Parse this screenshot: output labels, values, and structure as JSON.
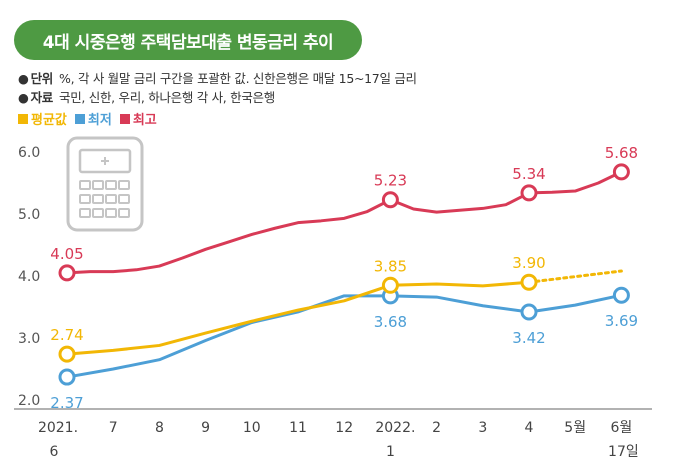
{
  "title": "4대 시중은행 주택담보대출 변동금리 추이",
  "notes": [
    {
      "key": "단위",
      "text": "%, 각 사 월말 금리 구간을 포괄한 값. 신한은행은 매달 15~17일 금리"
    },
    {
      "key": "자료",
      "text": "국민, 신한, 우리, 하나은행 각 사, 한국은행"
    }
  ],
  "colors": {
    "avg": "#f2b705",
    "min": "#4d9fd6",
    "max": "#d83a56",
    "title_bg": "#4e9a43"
  },
  "chart_data": {
    "type": "line",
    "title": "4대 시중은행 주택담보대출 변동금리 추이",
    "ylabel": "%",
    "ylim": [
      2.0,
      6.0
    ],
    "yticks": [
      "2.0",
      "3.0",
      "4.0",
      "5.0",
      "6.0"
    ],
    "categories": [
      {
        "top": "2021.",
        "bottom": "6"
      },
      {
        "top": "7",
        "bottom": ""
      },
      {
        "top": "8",
        "bottom": ""
      },
      {
        "top": "9",
        "bottom": ""
      },
      {
        "top": "10",
        "bottom": ""
      },
      {
        "top": "11",
        "bottom": ""
      },
      {
        "top": "12",
        "bottom": ""
      },
      {
        "top": "2022.",
        "bottom": "1"
      },
      {
        "top": "2",
        "bottom": ""
      },
      {
        "top": "3",
        "bottom": ""
      },
      {
        "top": "4",
        "bottom": ""
      },
      {
        "top": "5월",
        "bottom": ""
      },
      {
        "top": "6월",
        "bottom": "17일"
      }
    ],
    "series": [
      {
        "name": "최고",
        "key": "max",
        "x": [
          0,
          0.5,
          1,
          1.5,
          2,
          2.5,
          3,
          3.5,
          4,
          4.5,
          5,
          5.5,
          6,
          6.5,
          7,
          7.5,
          8,
          8.5,
          9,
          9.5,
          10,
          10.5,
          11,
          11.5,
          12
        ],
        "values": [
          4.05,
          4.07,
          4.07,
          4.1,
          4.16,
          4.29,
          4.43,
          4.55,
          4.67,
          4.77,
          4.86,
          4.89,
          4.93,
          5.04,
          5.23,
          5.08,
          5.03,
          5.06,
          5.09,
          5.15,
          5.34,
          5.35,
          5.37,
          5.5,
          5.68
        ],
        "labels": [
          {
            "x": 0,
            "value": 4.05,
            "text": "4.05",
            "pos": "above"
          },
          {
            "x": 7,
            "value": 5.23,
            "text": "5.23",
            "pos": "above"
          },
          {
            "x": 10,
            "value": 5.34,
            "text": "5.34",
            "pos": "above"
          },
          {
            "x": 12,
            "value": 5.68,
            "text": "5.68",
            "pos": "above"
          }
        ]
      },
      {
        "name": "평균값",
        "key": "avg",
        "x": [
          0,
          1,
          2,
          3,
          4,
          5,
          6,
          7,
          8,
          9,
          10
        ],
        "values": [
          2.74,
          2.8,
          2.88,
          3.08,
          3.27,
          3.45,
          3.6,
          3.85,
          3.87,
          3.84,
          3.9
        ],
        "projection": {
          "x": [
            10,
            12
          ],
          "values": [
            3.9,
            4.08
          ]
        },
        "labels": [
          {
            "x": 0,
            "value": 2.74,
            "text": "2.74",
            "pos": "above"
          },
          {
            "x": 7,
            "value": 3.85,
            "text": "3.85",
            "pos": "above"
          },
          {
            "x": 10,
            "value": 3.9,
            "text": "3.90",
            "pos": "above"
          }
        ]
      },
      {
        "name": "최저",
        "key": "min",
        "x": [
          0,
          1,
          2,
          3,
          4,
          5,
          6,
          7,
          8,
          9,
          10,
          11,
          12
        ],
        "values": [
          2.37,
          2.5,
          2.65,
          2.96,
          3.25,
          3.42,
          3.68,
          3.68,
          3.66,
          3.52,
          3.42,
          3.53,
          3.69
        ],
        "labels": [
          {
            "x": 0,
            "value": 2.37,
            "text": "2.37",
            "pos": "below"
          },
          {
            "x": 7,
            "value": 3.68,
            "text": "3.68",
            "pos": "below"
          },
          {
            "x": 10,
            "value": 3.42,
            "text": "3.42",
            "pos": "below"
          },
          {
            "x": 12,
            "value": 3.69,
            "text": "3.69",
            "pos": "below"
          }
        ]
      }
    ],
    "markers": {
      "max": [
        0,
        7,
        10,
        12
      ],
      "avg": [
        0,
        7,
        10
      ],
      "min": [
        0,
        7,
        10,
        12
      ]
    },
    "grid": false,
    "legend_position": "top-left"
  }
}
